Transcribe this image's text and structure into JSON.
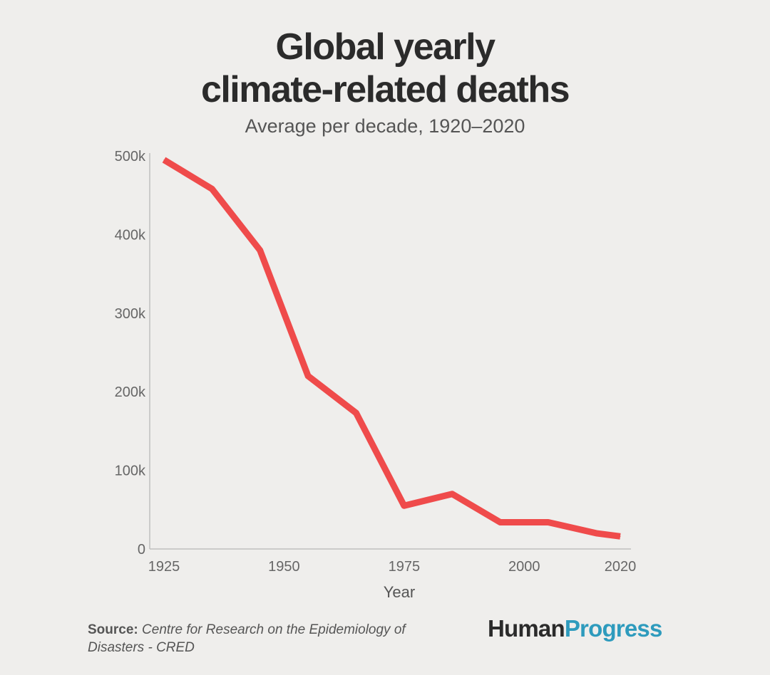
{
  "colors": {
    "line": "#ef4b4b",
    "brand_accent": "#2e9bbd"
  },
  "chart_data": {
    "type": "line",
    "title": [
      "Global yearly",
      "climate-related deaths"
    ],
    "subtitle": "Average per decade, 1920–2020",
    "xlabel": "Year",
    "ylabel": "",
    "x": [
      1925,
      1935,
      1945,
      1955,
      1965,
      1975,
      1985,
      1995,
      2005,
      2015,
      2020
    ],
    "values": [
      495000,
      458000,
      380000,
      220000,
      173000,
      55000,
      70000,
      34000,
      34000,
      20000,
      16000
    ],
    "xlim": [
      1925,
      2020
    ],
    "ylim": [
      0,
      500000
    ],
    "x_ticks": [
      1925,
      1950,
      1975,
      2000,
      2020
    ],
    "x_tick_labels": [
      "1925",
      "1950",
      "1975",
      "2000",
      "2020"
    ],
    "y_ticks": [
      0,
      100000,
      200000,
      300000,
      400000,
      500000
    ],
    "y_tick_labels": [
      "0",
      "100k",
      "200k",
      "300k",
      "400k",
      "500k"
    ],
    "grid": false,
    "legend": "none"
  },
  "footer": {
    "source_label": "Source:",
    "source_text": "Centre for Research on the Epidemiology of Disasters - CRED",
    "brand_part1": "Human",
    "brand_part2": "Progress"
  }
}
